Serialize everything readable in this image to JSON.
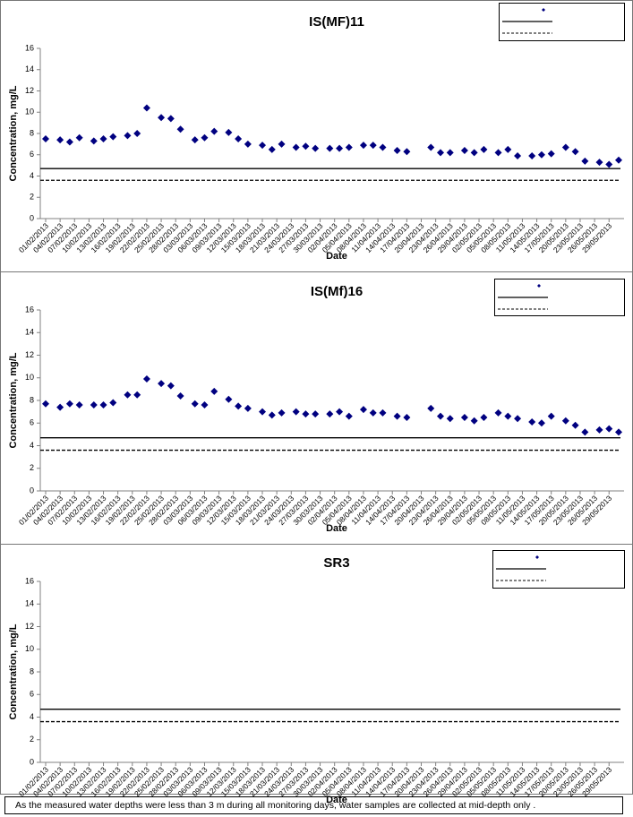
{
  "chart_data": [
    {
      "type": "scatter",
      "title": "IS(MF)11",
      "xlabel": "Date",
      "ylabel": "Concentration, mg/L",
      "x": [
        "01/02/2013",
        "04/02/2013",
        "06/02/2013",
        "08/02/2013",
        "11/02/2013",
        "13/02/2013",
        "15/02/2013",
        "18/02/2013",
        "20/02/2013",
        "22/02/2013",
        "25/02/2013",
        "27/02/2013",
        "01/03/2013",
        "04/03/2013",
        "06/03/2013",
        "08/03/2013",
        "11/03/2013",
        "13/03/2013",
        "15/03/2013",
        "18/03/2013",
        "20/03/2013",
        "22/03/2013",
        "25/03/2013",
        "27/03/2013",
        "29/03/2013",
        "01/04/2013",
        "03/04/2013",
        "05/04/2013",
        "08/04/2013",
        "10/04/2013",
        "12/04/2013",
        "15/04/2013",
        "17/04/2013",
        "22/04/2013",
        "24/04/2013",
        "26/04/2013",
        "29/04/2013",
        "01/05/2013",
        "03/05/2013",
        "06/05/2013",
        "08/05/2013",
        "10/05/2013",
        "13/05/2013",
        "15/05/2013",
        "17/05/2013",
        "20/05/2013",
        "22/05/2013",
        "24/05/2013",
        "27/05/2013",
        "29/05/2013",
        "31/05/2013"
      ],
      "series": [
        {
          "color": "#000080",
          "values": [
            7.5,
            7.4,
            7.2,
            7.6,
            7.3,
            7.5,
            7.7,
            7.8,
            8.0,
            10.4,
            9.5,
            9.4,
            8.4,
            7.4,
            7.6,
            8.2,
            8.1,
            7.5,
            7.0,
            6.9,
            6.5,
            7.0,
            6.7,
            6.8,
            6.6,
            6.6,
            6.6,
            6.7,
            6.9,
            6.9,
            6.7,
            6.4,
            6.3,
            6.7,
            6.2,
            6.2,
            6.4,
            6.2,
            6.5,
            6.2,
            6.5,
            5.9,
            5.9,
            6.0,
            6.1,
            6.7,
            6.3,
            5.4,
            5.3,
            5.1,
            5.5
          ]
        }
      ],
      "reference_lines": [
        {
          "value": 4.7,
          "style": "solid"
        },
        {
          "value": 3.6,
          "style": "dashed"
        }
      ],
      "xlim": [
        "01/02/2013",
        "31/05/2013"
      ],
      "xticks": [
        "01/02/2013",
        "04/02/2013",
        "07/02/2013",
        "10/02/2013",
        "13/02/2013",
        "16/02/2013",
        "19/02/2013",
        "22/02/2013",
        "25/02/2013",
        "28/02/2013",
        "03/03/2013",
        "06/03/2013",
        "09/03/2013",
        "12/03/2013",
        "15/03/2013",
        "18/03/2013",
        "21/03/2013",
        "24/03/2013",
        "27/03/2013",
        "30/03/2013",
        "02/04/2013",
        "05/04/2013",
        "08/04/2013",
        "11/04/2013",
        "14/04/2013",
        "17/04/2013",
        "20/04/2013",
        "23/04/2013",
        "26/04/2013",
        "29/04/2013",
        "02/05/2013",
        "05/05/2013",
        "08/05/2013",
        "11/05/2013",
        "14/05/2013",
        "17/05/2013",
        "20/05/2013",
        "23/05/2013",
        "26/05/2013",
        "29/05/2013"
      ],
      "ylim": [
        0,
        16
      ],
      "yticks": [
        0,
        2,
        4,
        6,
        8,
        10,
        12,
        14,
        16
      ]
    },
    {
      "type": "scatter",
      "title": "IS(Mf)16",
      "xlabel": "Date",
      "ylabel": "Concentration, mg/L",
      "x": [
        "01/02/2013",
        "04/02/2013",
        "06/02/2013",
        "08/02/2013",
        "11/02/2013",
        "13/02/2013",
        "15/02/2013",
        "18/02/2013",
        "20/02/2013",
        "22/02/2013",
        "25/02/2013",
        "27/02/2013",
        "01/03/2013",
        "04/03/2013",
        "06/03/2013",
        "08/03/2013",
        "11/03/2013",
        "13/03/2013",
        "15/03/2013",
        "18/03/2013",
        "20/03/2013",
        "22/03/2013",
        "25/03/2013",
        "27/03/2013",
        "29/03/2013",
        "01/04/2013",
        "03/04/2013",
        "05/04/2013",
        "08/04/2013",
        "10/04/2013",
        "12/04/2013",
        "15/04/2013",
        "17/04/2013",
        "22/04/2013",
        "24/04/2013",
        "26/04/2013",
        "29/04/2013",
        "01/05/2013",
        "03/05/2013",
        "06/05/2013",
        "08/05/2013",
        "10/05/2013",
        "13/05/2013",
        "15/05/2013",
        "17/05/2013",
        "20/05/2013",
        "22/05/2013",
        "24/05/2013",
        "27/05/2013",
        "29/05/2013",
        "31/05/2013"
      ],
      "series": [
        {
          "color": "#000080",
          "values": [
            7.7,
            7.4,
            7.7,
            7.6,
            7.6,
            7.6,
            7.8,
            8.5,
            8.5,
            9.9,
            9.5,
            9.3,
            8.4,
            7.7,
            7.6,
            8.8,
            8.1,
            7.5,
            7.3,
            7.0,
            6.7,
            6.9,
            7.0,
            6.8,
            6.8,
            6.8,
            7.0,
            6.6,
            7.2,
            6.9,
            6.9,
            6.6,
            6.5,
            7.3,
            6.6,
            6.4,
            6.5,
            6.2,
            6.5,
            6.9,
            6.6,
            6.4,
            6.1,
            6.0,
            6.6,
            6.2,
            5.8,
            5.2,
            5.4,
            5.5,
            5.2
          ]
        }
      ],
      "reference_lines": [
        {
          "value": 4.7,
          "style": "solid"
        },
        {
          "value": 3.6,
          "style": "dashed"
        }
      ],
      "xlim": [
        "01/02/2013",
        "31/05/2013"
      ],
      "xticks": [
        "01/02/2013",
        "04/02/2013",
        "07/02/2013",
        "10/02/2013",
        "13/02/2013",
        "16/02/2013",
        "19/02/2013",
        "22/02/2013",
        "25/02/2013",
        "28/02/2013",
        "03/03/2013",
        "06/03/2013",
        "09/03/2013",
        "12/03/2013",
        "15/03/2013",
        "18/03/2013",
        "21/03/2013",
        "24/03/2013",
        "27/03/2013",
        "30/03/2013",
        "02/04/2013",
        "05/04/2013",
        "08/04/2013",
        "11/04/2013",
        "14/04/2013",
        "17/04/2013",
        "20/04/2013",
        "23/04/2013",
        "26/04/2013",
        "29/04/2013",
        "02/05/2013",
        "05/05/2013",
        "08/05/2013",
        "11/05/2013",
        "14/05/2013",
        "17/05/2013",
        "20/05/2013",
        "23/05/2013",
        "26/05/2013",
        "29/05/2013"
      ],
      "ylim": [
        0,
        16
      ],
      "yticks": [
        0,
        2,
        4,
        6,
        8,
        10,
        12,
        14,
        16
      ]
    },
    {
      "type": "scatter",
      "title": "SR3",
      "xlabel": "Date",
      "ylabel": "Concentration, mg/L",
      "x": [],
      "series": [
        {
          "color": "#000080",
          "values": []
        }
      ],
      "reference_lines": [
        {
          "value": 4.7,
          "style": "solid"
        },
        {
          "value": 3.6,
          "style": "dashed"
        }
      ],
      "xlim": [
        "01/02/2013",
        "31/05/2013"
      ],
      "xticks": [
        "01/02/2013",
        "04/02/2013",
        "07/02/2013",
        "10/02/2013",
        "13/02/2013",
        "16/02/2013",
        "19/02/2013",
        "22/02/2013",
        "25/02/2013",
        "28/02/2013",
        "03/03/2013",
        "06/03/2013",
        "09/03/2013",
        "12/03/2013",
        "15/03/2013",
        "18/03/2013",
        "21/03/2013",
        "24/03/2013",
        "27/03/2013",
        "30/03/2013",
        "02/04/2013",
        "05/04/2013",
        "08/04/2013",
        "11/04/2013",
        "14/04/2013",
        "17/04/2013",
        "20/04/2013",
        "23/04/2013",
        "26/04/2013",
        "29/04/2013",
        "02/05/2013",
        "05/05/2013",
        "08/05/2013",
        "11/05/2013",
        "14/05/2013",
        "17/05/2013",
        "20/05/2013",
        "23/05/2013",
        "26/05/2013",
        "29/05/2013"
      ],
      "ylim": [
        0,
        16
      ],
      "yticks": [
        0,
        2,
        4,
        6,
        8,
        10,
        12,
        14,
        16
      ]
    }
  ],
  "note": "As the measured water depths were less than 3 m during all monitoring days, water samples are collected  at mid-depth only ."
}
